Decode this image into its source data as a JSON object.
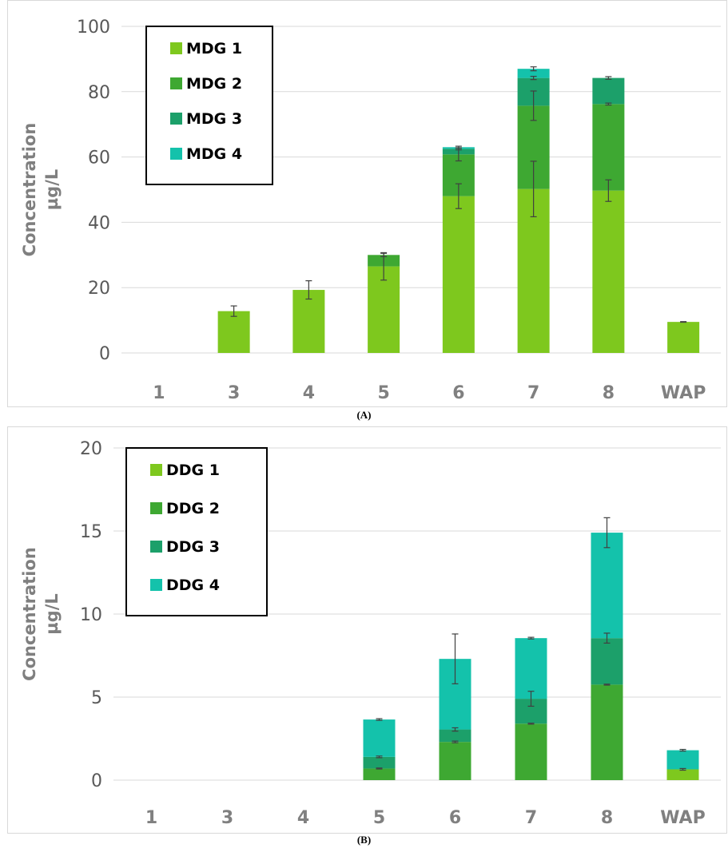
{
  "colors": {
    "grid": "#d9d9d9",
    "tick_text": "#595959",
    "axis_title": "#7f7f7f",
    "category_text": "#808080",
    "error_bar": "#404040",
    "frame": "#d9d9d9"
  },
  "chart_data": [
    {
      "type": "bar",
      "stacked": true,
      "panel_label": "(A)",
      "title": "",
      "ylabel": "Concentration µg/L",
      "ylabel_lines": [
        "Concentration",
        "µg/L"
      ],
      "xlabel": "",
      "ylim": [
        0,
        100
      ],
      "yticks": [
        0,
        20,
        40,
        60,
        80,
        100
      ],
      "grid": true,
      "legend_position": "top-left",
      "categories": [
        "1",
        "3",
        "4",
        "5",
        "6",
        "7",
        "8",
        "WAP"
      ],
      "series": [
        {
          "name": "MDG 1",
          "color": "#7ec81e",
          "values": [
            0,
            12.8,
            19.3,
            26.5,
            48,
            50.2,
            49.7,
            9.5
          ],
          "errors": [
            null,
            1.6,
            2.8,
            4.2,
            3.8,
            8.5,
            3.3,
            0.1
          ]
        },
        {
          "name": "MDG 2",
          "color": "#3ea832",
          "values": [
            0,
            0,
            0,
            3.5,
            12.8,
            25.5,
            26.5,
            0
          ],
          "errors": [
            null,
            null,
            null,
            0.5,
            2.0,
            4.5,
            0.3,
            null
          ]
        },
        {
          "name": "MDG 3",
          "color": "#1ca06a",
          "values": [
            0,
            0,
            0,
            0,
            1.7,
            8.5,
            8.0,
            0
          ],
          "errors": [
            null,
            null,
            null,
            null,
            0.3,
            0.5,
            0.4,
            null
          ]
        },
        {
          "name": "MDG 4",
          "color": "#14c2ab",
          "values": [
            0,
            0,
            0,
            0,
            0.5,
            2.8,
            0,
            0
          ],
          "errors": [
            null,
            null,
            null,
            null,
            0.3,
            0.6,
            null,
            null
          ]
        }
      ]
    },
    {
      "type": "bar",
      "stacked": true,
      "panel_label": "(B)",
      "title": "",
      "ylabel": "Concentration µg/L",
      "ylabel_lines": [
        "Concentration",
        "µg/L"
      ],
      "xlabel": "",
      "ylim": [
        0,
        20
      ],
      "yticks": [
        0,
        5,
        10,
        15,
        20
      ],
      "grid": true,
      "legend_position": "top-left",
      "categories": [
        "1",
        "3",
        "4",
        "5",
        "6",
        "7",
        "8",
        "WAP"
      ],
      "series": [
        {
          "name": "DDG 1",
          "color": "#7ec81e",
          "values": [
            0,
            0,
            0,
            0,
            0,
            0,
            0,
            0.65
          ],
          "errors": [
            null,
            null,
            null,
            null,
            null,
            null,
            null,
            null
          ]
        },
        {
          "name": "DDG 2",
          "color": "#3ea832",
          "values": [
            0,
            0,
            0,
            0.7,
            2.3,
            3.4,
            5.75,
            0
          ],
          "errors": [
            null,
            null,
            null,
            0.03,
            0.05,
            0.03,
            0.03,
            0.05
          ]
        },
        {
          "name": "DDG 3",
          "color": "#1ca06a",
          "values": [
            0,
            0,
            0,
            0.7,
            0.75,
            1.5,
            2.8,
            0
          ],
          "errors": [
            null,
            null,
            null,
            0.05,
            0.1,
            0.45,
            0.3,
            null
          ]
        },
        {
          "name": "DDG 4",
          "color": "#14c2ab",
          "values": [
            0,
            0,
            0,
            2.25,
            4.25,
            3.65,
            6.35,
            1.15
          ],
          "errors": [
            null,
            null,
            null,
            0.05,
            1.5,
            0.05,
            0.9,
            0.05
          ]
        }
      ]
    }
  ]
}
